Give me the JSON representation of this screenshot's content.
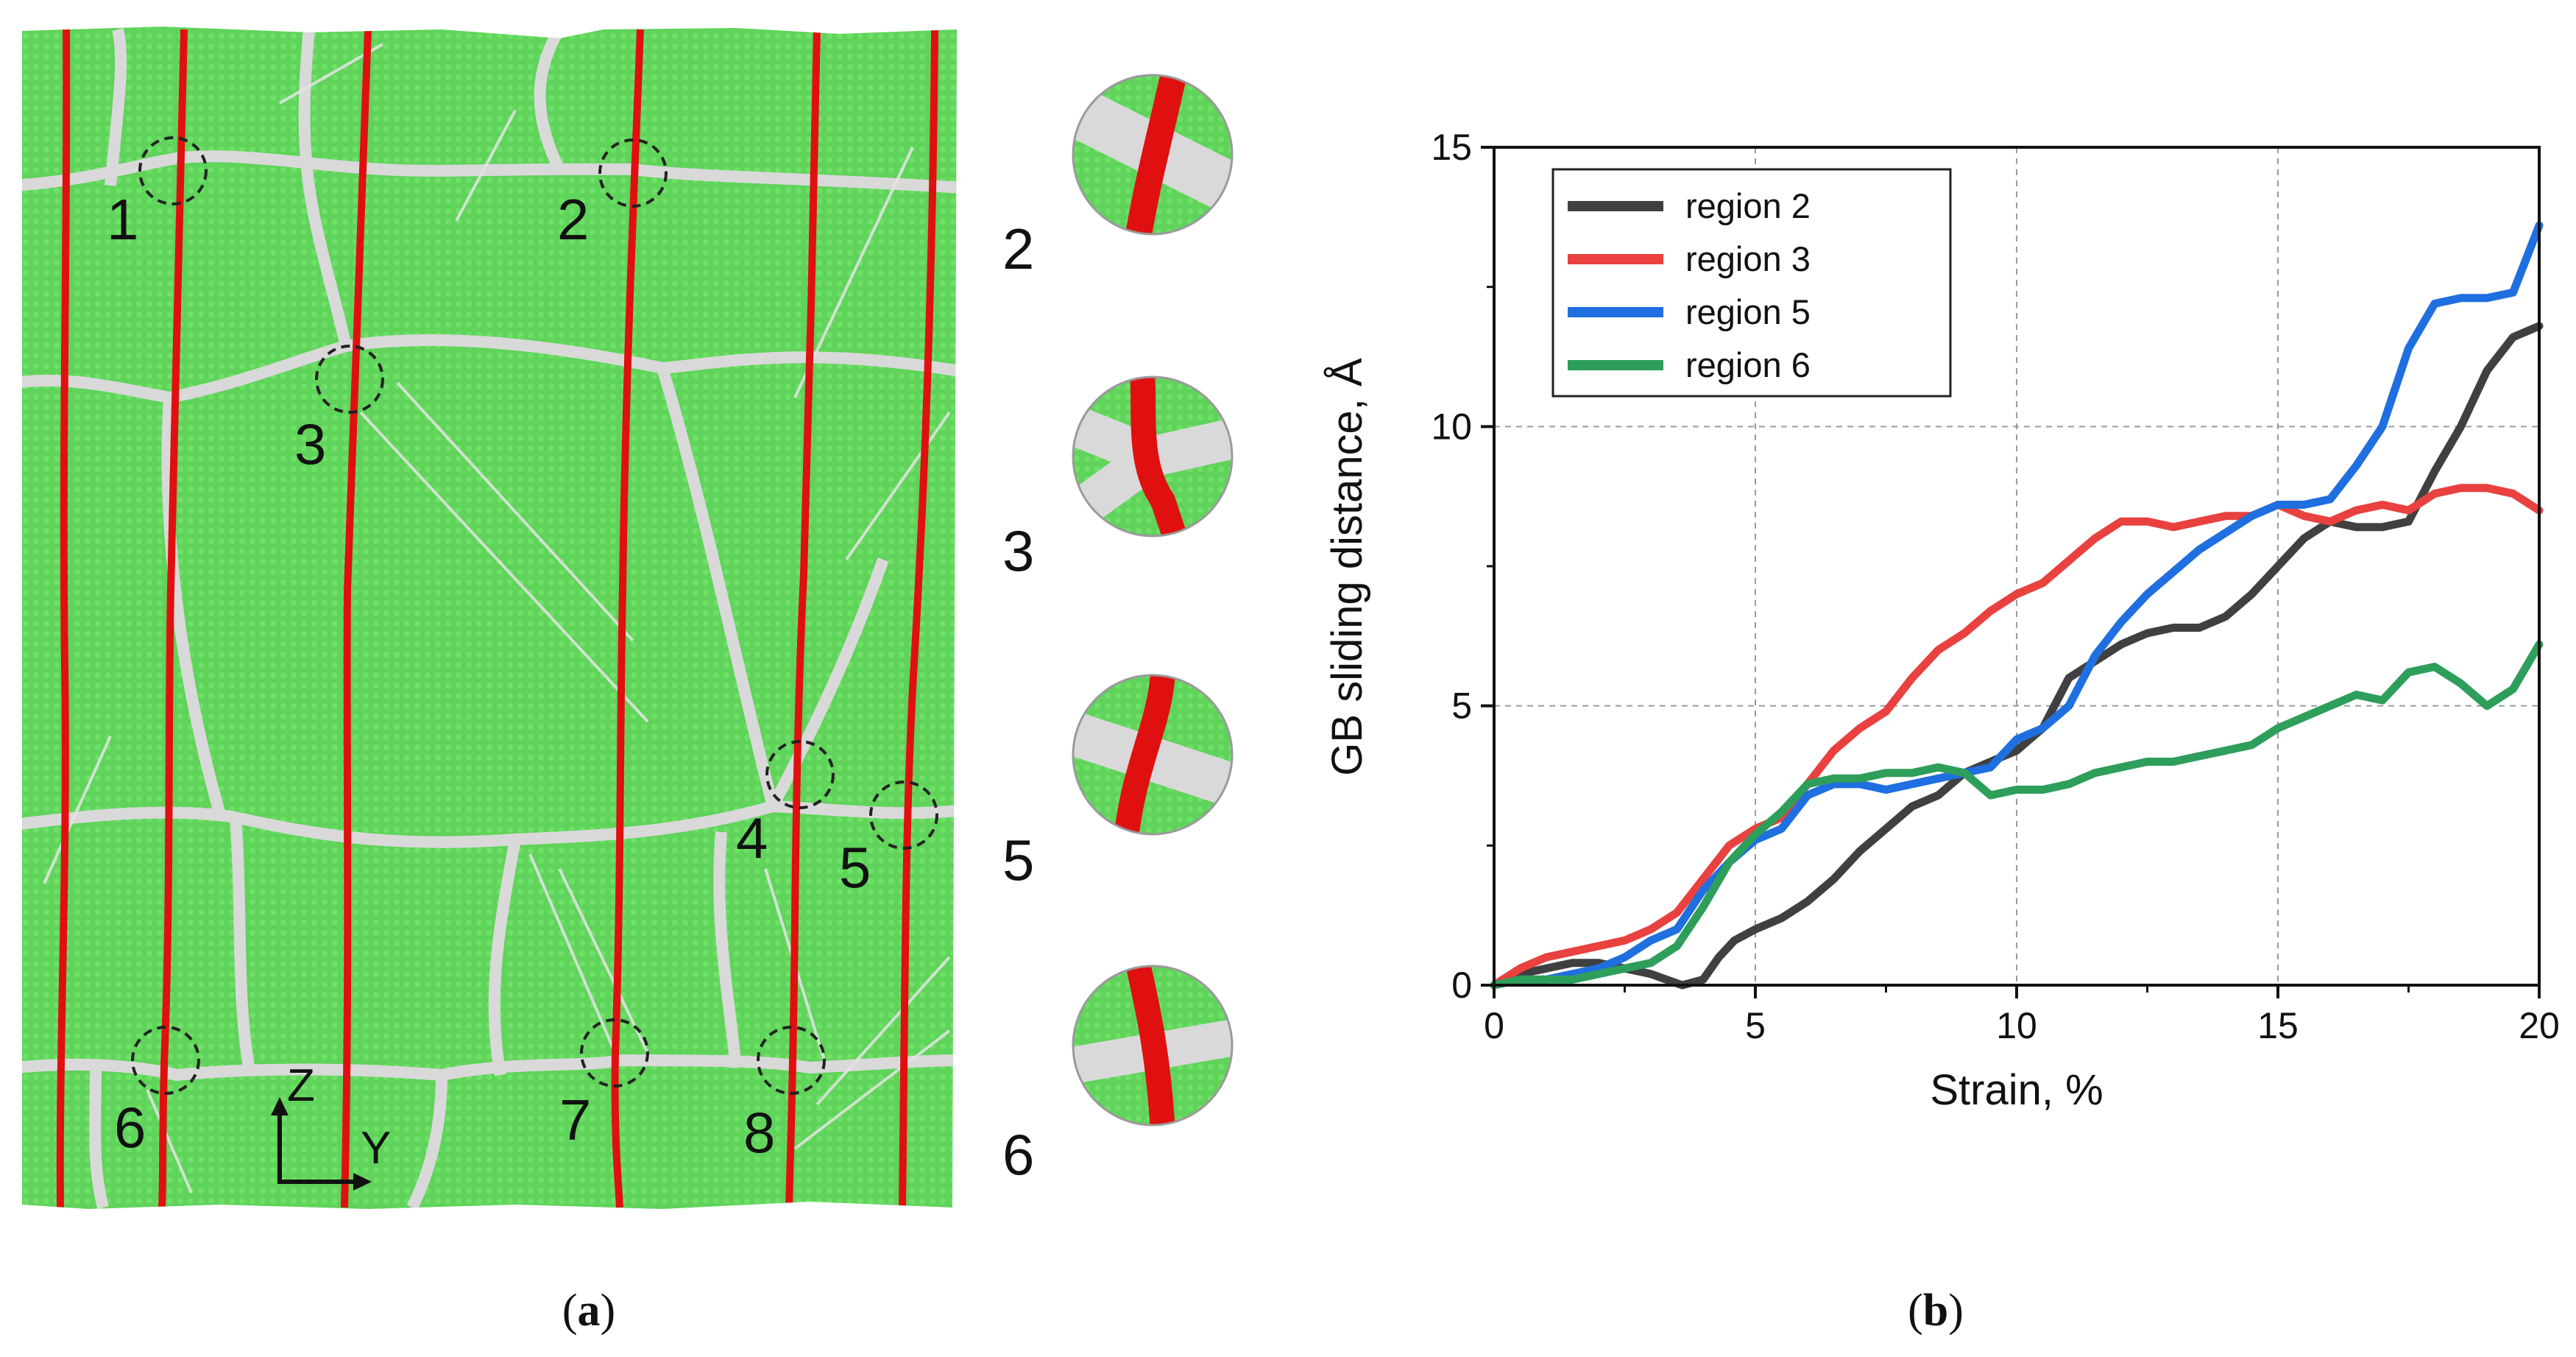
{
  "panel_a": {
    "caption_letter": "a",
    "region_labels": [
      "1",
      "2",
      "3",
      "4",
      "5",
      "6",
      "7",
      "8"
    ],
    "axis_arrows": {
      "vertical": "Z",
      "horizontal": "Y"
    },
    "inset_labels": [
      "2",
      "3",
      "5",
      "6"
    ],
    "colors": {
      "grain": "#5fd35a",
      "boundary": "#d9d9d9",
      "tracked_atoms": "#e01010"
    }
  },
  "panel_b": {
    "caption_letter": "b"
  },
  "chart_data": {
    "type": "line",
    "title": "",
    "xlabel": "Strain, %",
    "ylabel": "GB sliding distance, Å",
    "xlim": [
      0,
      20
    ],
    "ylim": [
      0,
      15
    ],
    "xticks": [
      "0",
      "5",
      "10",
      "15",
      "20"
    ],
    "yticks": [
      "0",
      "5",
      "10",
      "15"
    ],
    "grid": true,
    "legend_position": "top-left",
    "series": [
      {
        "name": "region 2",
        "color": "#404040",
        "x": [
          0,
          0.5,
          1,
          1.5,
          2,
          2.5,
          3,
          3.3,
          3.6,
          4,
          4.3,
          4.6,
          5,
          5.5,
          6,
          6.5,
          7,
          7.5,
          8,
          8.5,
          9,
          9.5,
          10,
          10.5,
          11,
          11.5,
          12,
          12.5,
          13,
          13.5,
          14,
          14.5,
          15,
          15.5,
          16,
          16.5,
          17,
          17.5,
          18,
          18.5,
          19,
          19.5,
          20
        ],
        "y": [
          0,
          0.2,
          0.3,
          0.4,
          0.4,
          0.3,
          0.2,
          0.1,
          0.0,
          0.1,
          0.5,
          0.8,
          1.0,
          1.2,
          1.5,
          1.9,
          2.4,
          2.8,
          3.2,
          3.4,
          3.8,
          4.0,
          4.2,
          4.6,
          5.5,
          5.8,
          6.1,
          6.3,
          6.4,
          6.4,
          6.6,
          7.0,
          7.5,
          8.0,
          8.3,
          8.2,
          8.2,
          8.3,
          9.2,
          10.0,
          11.0,
          11.6,
          11.8
        ]
      },
      {
        "name": "region 3",
        "color": "#e8413f",
        "x": [
          0,
          0.5,
          1,
          1.5,
          2,
          2.5,
          3,
          3.5,
          4,
          4.5,
          5,
          5.5,
          6,
          6.5,
          7,
          7.5,
          8,
          8.5,
          9,
          9.5,
          10,
          10.5,
          11,
          11.5,
          12,
          12.5,
          13,
          13.5,
          14,
          14.5,
          15,
          15.5,
          16,
          16.5,
          17,
          17.5,
          18,
          18.5,
          19,
          19.5,
          20
        ],
        "y": [
          0,
          0.3,
          0.5,
          0.6,
          0.7,
          0.8,
          1.0,
          1.3,
          1.9,
          2.5,
          2.8,
          3.0,
          3.6,
          4.2,
          4.6,
          4.9,
          5.5,
          6.0,
          6.3,
          6.7,
          7.0,
          7.2,
          7.6,
          8.0,
          8.3,
          8.3,
          8.2,
          8.3,
          8.4,
          8.4,
          8.6,
          8.4,
          8.3,
          8.5,
          8.6,
          8.5,
          8.8,
          8.9,
          8.9,
          8.8,
          8.5
        ]
      },
      {
        "name": "region 5",
        "color": "#1f6fe0",
        "x": [
          0,
          0.5,
          1,
          1.5,
          2,
          2.5,
          3,
          3.5,
          4,
          4.5,
          5,
          5.5,
          6,
          6.5,
          7,
          7.5,
          8,
          8.5,
          9,
          9.5,
          10,
          10.5,
          11,
          11.5,
          12,
          12.5,
          13,
          13.5,
          14,
          14.5,
          15,
          15.5,
          16,
          16.5,
          17,
          17.5,
          18,
          18.5,
          19,
          19.5,
          20
        ],
        "y": [
          0,
          0.1,
          0.1,
          0.2,
          0.3,
          0.5,
          0.8,
          1.0,
          1.7,
          2.2,
          2.6,
          2.8,
          3.4,
          3.6,
          3.6,
          3.5,
          3.6,
          3.7,
          3.8,
          3.9,
          4.4,
          4.6,
          5.0,
          5.9,
          6.5,
          7.0,
          7.4,
          7.8,
          8.1,
          8.4,
          8.6,
          8.6,
          8.7,
          9.3,
          10.0,
          11.4,
          12.2,
          12.3,
          12.3,
          12.4,
          13.6
        ]
      },
      {
        "name": "region 6",
        "color": "#2e9e5b",
        "x": [
          0,
          0.5,
          1,
          1.5,
          2,
          2.5,
          3,
          3.5,
          4,
          4.5,
          5,
          5.5,
          6,
          6.5,
          7,
          7.5,
          8,
          8.5,
          9,
          9.5,
          10,
          10.5,
          11,
          11.5,
          12,
          12.5,
          13,
          13.5,
          14,
          14.5,
          15,
          15.5,
          16,
          16.5,
          17,
          17.5,
          18,
          18.5,
          19,
          19.5,
          20
        ],
        "y": [
          0,
          0.1,
          0.1,
          0.1,
          0.2,
          0.3,
          0.4,
          0.7,
          1.4,
          2.2,
          2.7,
          3.1,
          3.6,
          3.7,
          3.7,
          3.8,
          3.8,
          3.9,
          3.8,
          3.4,
          3.5,
          3.5,
          3.6,
          3.8,
          3.9,
          4.0,
          4.0,
          4.1,
          4.2,
          4.3,
          4.6,
          4.8,
          5.0,
          5.2,
          5.1,
          5.6,
          5.7,
          5.4,
          5.0,
          5.3,
          6.1
        ]
      }
    ]
  }
}
